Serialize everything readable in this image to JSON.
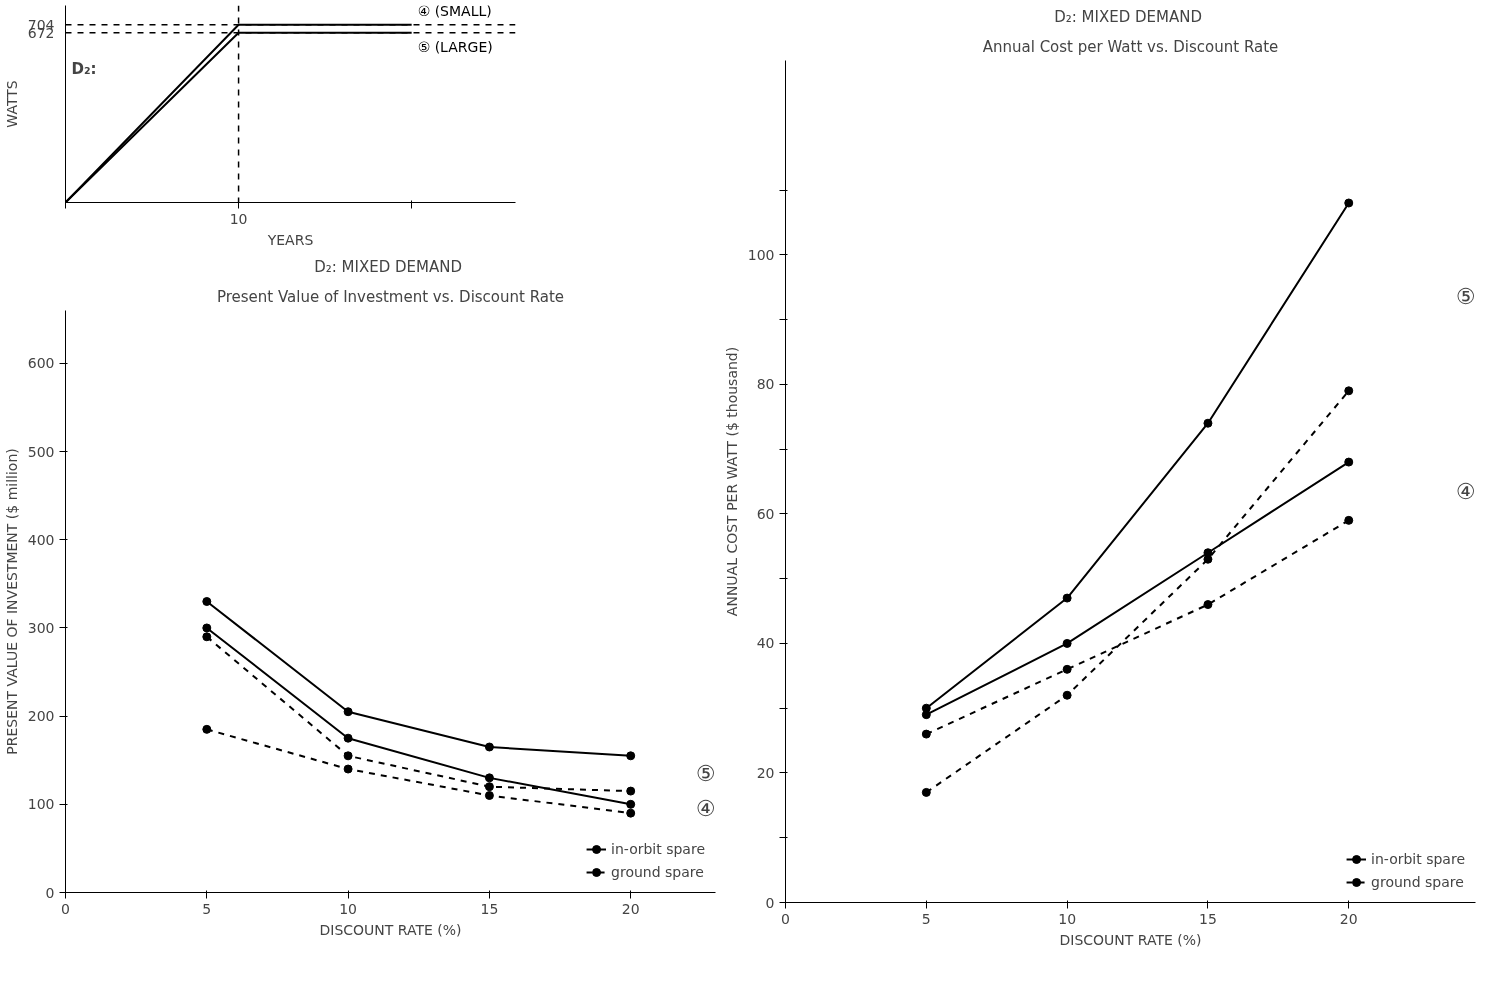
{
  "chart_data": [
    {
      "type": "line",
      "xlabel": "YEARS",
      "ylabel": "WATTS",
      "categories": [
        null,
        "10",
        null
      ],
      "ylim": [
        0,
        780
      ],
      "yticks": [
        672,
        704
      ],
      "series": [
        {
          "name": "④ (SMALL)",
          "color": "#000000",
          "line_style": "solid",
          "values": [
            0,
            704,
            704
          ]
        },
        {
          "name": "⑤ (LARGE)",
          "color": "#000000",
          "line_style": "solid",
          "values": [
            0,
            672,
            672
          ]
        }
      ],
      "ref_lines": [
        {
          "axis": "y",
          "value": 704,
          "line_style": "dashed",
          "color": "#000000"
        },
        {
          "axis": "y",
          "value": 672,
          "line_style": "dashed",
          "color": "#000000"
        },
        {
          "axis": "x",
          "value": "10",
          "line_style": "dashed",
          "color": "#000000"
        }
      ],
      "annotations": [
        "D₂:"
      ]
    },
    {
      "type": "line",
      "title": "D₂:  MIXED DEMAND",
      "subtitle": "Present Value of Investment vs. Discount Rate",
      "xlabel": "DISCOUNT RATE (%)",
      "ylabel": "PRESENT VALUE OF INVESTMENT ($ million)",
      "x": [
        5,
        10,
        15,
        20
      ],
      "xlim": [
        0,
        23
      ],
      "ylim": [
        0,
        660
      ],
      "xticks": [
        0,
        5,
        10,
        15,
        20
      ],
      "yticks": [
        0,
        100,
        200,
        300,
        400,
        500,
        600
      ],
      "marker": "circle",
      "legend": "bottom right",
      "series": [
        {
          "name": "in-orbit spare",
          "color": "#000000",
          "line_style": "solid",
          "values": [
            330,
            205,
            165,
            155
          ]
        },
        {
          "name": "ground spare",
          "color": "#000000",
          "line_style": "dashed",
          "values": [
            290,
            155,
            120,
            115
          ]
        },
        {
          "name": "in-orbit spare",
          "color": "#000000",
          "line_style": "solid",
          "values": [
            300,
            175,
            130,
            100
          ]
        },
        {
          "name": "ground spare",
          "color": "#000000",
          "line_style": "dashed",
          "values": [
            185,
            140,
            110,
            90
          ]
        }
      ],
      "annotations": [
        "⑤",
        "④"
      ]
    },
    {
      "type": "line",
      "title": "D₂:  MIXED DEMAND",
      "subtitle": "Annual Cost per Watt vs. Discount Rate",
      "xlabel": "DISCOUNT RATE (%)",
      "ylabel": "ANNUAL COST PER WATT ($ thousand)",
      "x": [
        5,
        10,
        15,
        20
      ],
      "xlim": [
        0,
        24.5
      ],
      "ylim": [
        0,
        130
      ],
      "xticks": [
        0,
        5,
        10,
        15,
        20
      ],
      "yticks": [
        0,
        {
          "value": 10,
          "label": null
        },
        20,
        {
          "value": 30,
          "label": null
        },
        40,
        {
          "value": 50,
          "label": null
        },
        60,
        {
          "value": 70,
          "label": null
        },
        80,
        {
          "value": 90,
          "label": null
        },
        100,
        {
          "value": 110,
          "label": null
        }
      ],
      "marker": "circle",
      "legend": "bottom right",
      "series": [
        {
          "name": "in-orbit spare",
          "color": "#000000",
          "line_style": "solid",
          "values": [
            30,
            47,
            74,
            108
          ]
        },
        {
          "name": "ground spare",
          "color": "#000000",
          "line_style": "dashed",
          "values": [
            17,
            32,
            53,
            79
          ]
        },
        {
          "name": "in-orbit spare",
          "color": "#000000",
          "line_style": "solid",
          "values": [
            29,
            40,
            54,
            68
          ]
        },
        {
          "name": "ground spare",
          "color": "#000000",
          "line_style": "dashed",
          "values": [
            26,
            36,
            46,
            59
          ]
        }
      ],
      "annotations": [
        "⑤",
        "④"
      ]
    }
  ]
}
